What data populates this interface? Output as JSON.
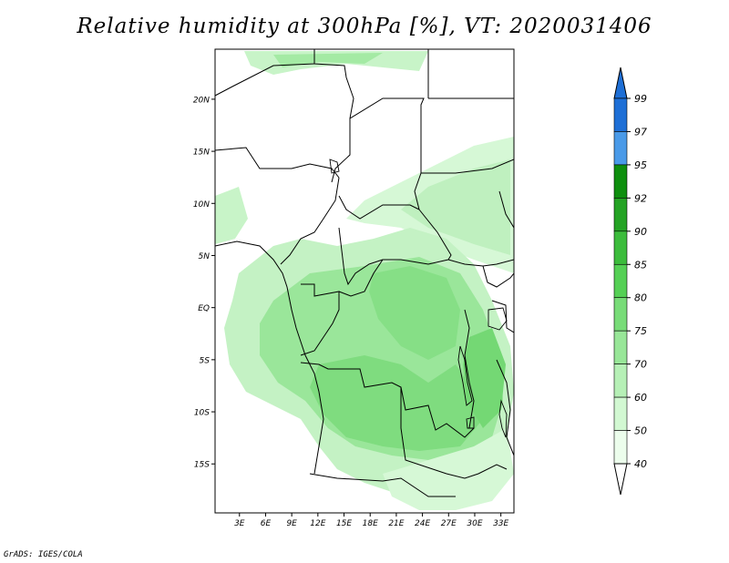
{
  "title": "Relative humidity at 300hPa [%], VT: 2020031406",
  "credit": "GrADS: IGES/COLA",
  "map": {
    "lat_labels": [
      "20N",
      "15N",
      "10N",
      "5N",
      "EQ",
      "5S",
      "10S",
      "15S"
    ],
    "lon_labels": [
      "3E",
      "6E",
      "9E",
      "12E",
      "15E",
      "18E",
      "21E",
      "24E",
      "27E",
      "30E",
      "33E"
    ],
    "lat_values": [
      20,
      15,
      10,
      5,
      0,
      -5,
      -10,
      -15
    ],
    "lon_values": [
      3,
      6,
      9,
      12,
      15,
      18,
      21,
      24,
      27,
      30,
      33
    ],
    "extent": {
      "lon_min": 0.2,
      "lon_max": 34.5,
      "lat_min": -19.7,
      "lat_max": 24.8
    }
  },
  "colorbar": {
    "levels": [
      "99",
      "97",
      "95",
      "92",
      "90",
      "85",
      "80",
      "75",
      "70",
      "60",
      "50",
      "40"
    ],
    "colors": [
      "#1e6fd6",
      "#1e6fd6",
      "#4a9ae8",
      "#0e8f0e",
      "#24a324",
      "#3cbc3c",
      "#55d055",
      "#78dc78",
      "#98e698",
      "#b6f0b6",
      "#d2f8d2",
      "#ecfdec",
      "#ffffff"
    ]
  },
  "colors": {
    "accent": "#55d055",
    "border": "#000000"
  }
}
